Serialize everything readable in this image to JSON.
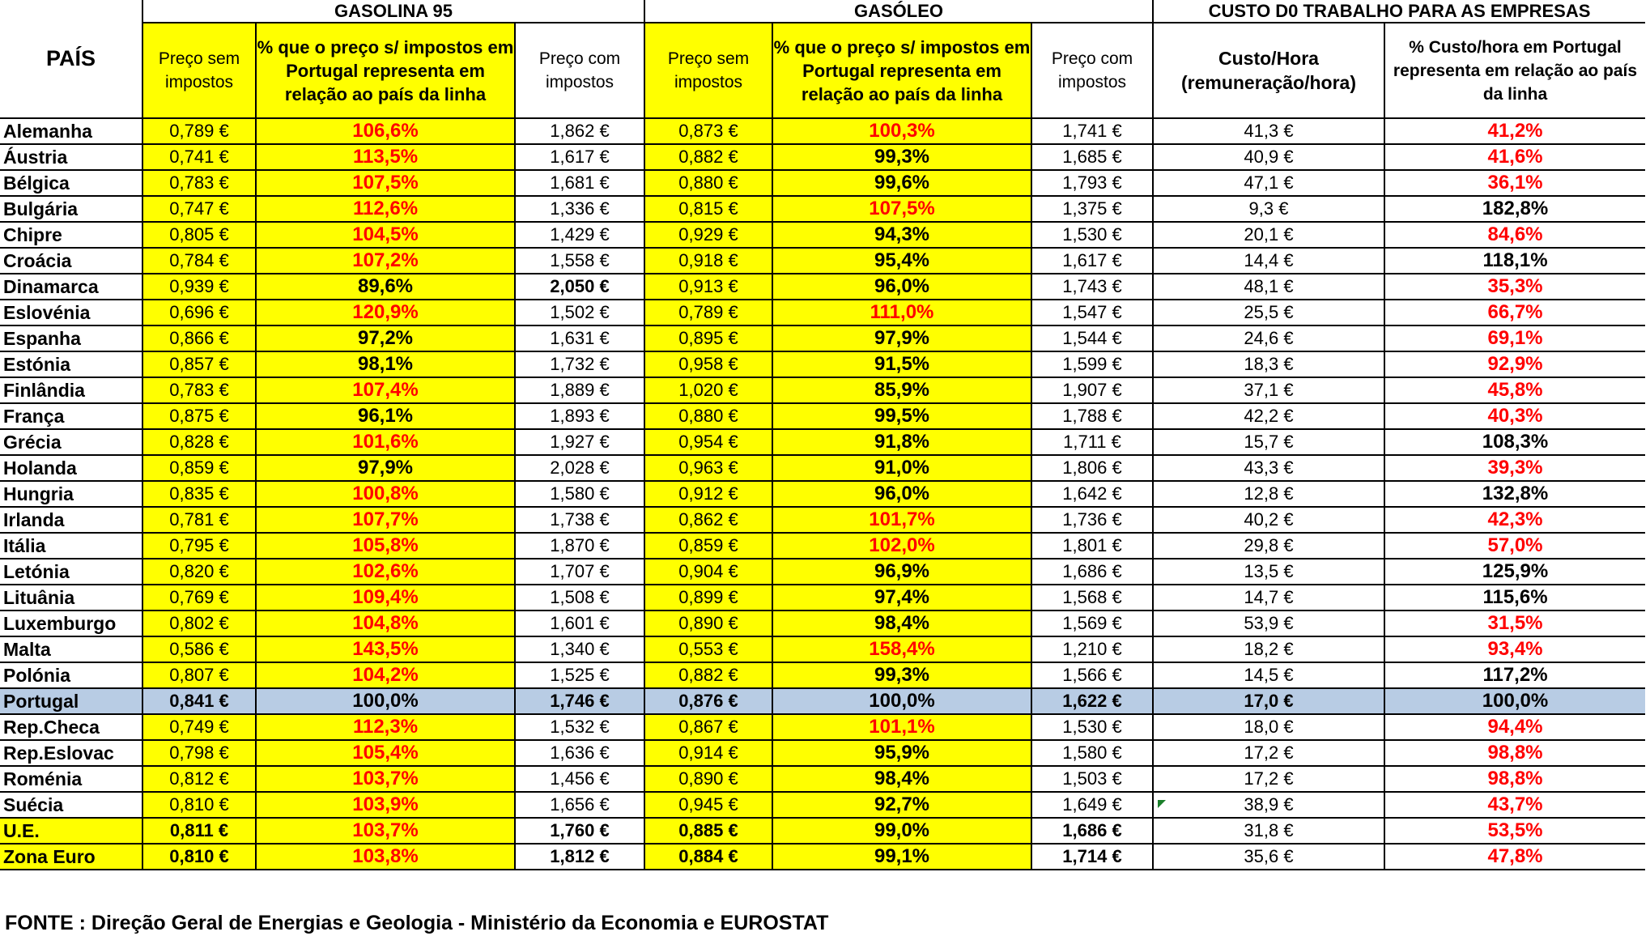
{
  "headers": {
    "pais": "PAÍS",
    "gasolina": "GASOLINA 95",
    "gasoleo": "GASÓLEO",
    "trabalho": "CUSTO D0 TRABALHO PARA AS EMPRESAS",
    "preco_sem": "Preço sem impostos",
    "pct_preco": "% que o preço  s/ impostos em Portugal representa em relação ao país da linha",
    "preco_com": "Preço com impostos",
    "custo_hora": "Custo/Hora (remuneração/hora)",
    "pct_custo": "% Custo/hora em Portugal representa em relação ao país da linha"
  },
  "rows": [
    {
      "pais": "Alemanha",
      "g_sem": "0,789 €",
      "g_pct": "106,6%",
      "g_pct_red": true,
      "g_com": "1,862 €",
      "d_sem": "0,873 €",
      "d_pct": "100,3%",
      "d_pct_red": true,
      "d_com": "1,741 €",
      "custo": "41,3 €",
      "c_pct": "41,2%",
      "c_pct_red": true
    },
    {
      "pais": "Áustria",
      "g_sem": "0,741 €",
      "g_pct": "113,5%",
      "g_pct_red": true,
      "g_com": "1,617 €",
      "d_sem": "0,882 €",
      "d_pct": "99,3%",
      "d_pct_red": false,
      "d_com": "1,685 €",
      "custo": "40,9 €",
      "c_pct": "41,6%",
      "c_pct_red": true
    },
    {
      "pais": "Bélgica",
      "g_sem": "0,783 €",
      "g_pct": "107,5%",
      "g_pct_red": true,
      "g_com": "1,681 €",
      "d_sem": "0,880 €",
      "d_pct": "99,6%",
      "d_pct_red": false,
      "d_com": "1,793 €",
      "custo": "47,1 €",
      "c_pct": "36,1%",
      "c_pct_red": true
    },
    {
      "pais": "Bulgária",
      "g_sem": "0,747 €",
      "g_pct": "112,6%",
      "g_pct_red": true,
      "g_com": "1,336 €",
      "d_sem": "0,815 €",
      "d_pct": "107,5%",
      "d_pct_red": true,
      "d_com": "1,375 €",
      "custo": "9,3 €",
      "c_pct": "182,8%",
      "c_pct_red": false
    },
    {
      "pais": "Chipre",
      "g_sem": "0,805 €",
      "g_pct": "104,5%",
      "g_pct_red": true,
      "g_com": "1,429 €",
      "d_sem": "0,929 €",
      "d_pct": "94,3%",
      "d_pct_red": false,
      "d_com": "1,530 €",
      "custo": "20,1 €",
      "c_pct": "84,6%",
      "c_pct_red": true
    },
    {
      "pais": "Croácia",
      "g_sem": "0,784 €",
      "g_pct": "107,2%",
      "g_pct_red": true,
      "g_com": "1,558 €",
      "d_sem": "0,918 €",
      "d_pct": "95,4%",
      "d_pct_red": false,
      "d_com": "1,617 €",
      "custo": "14,4 €",
      "c_pct": "118,1%",
      "c_pct_red": false
    },
    {
      "pais": "Dinamarca",
      "g_sem": "0,939 €",
      "g_pct": "89,6%",
      "g_pct_red": false,
      "g_com": "2,050 €",
      "g_com_bold": true,
      "d_sem": "0,913 €",
      "d_pct": "96,0%",
      "d_pct_red": false,
      "d_com": "1,743 €",
      "custo": "48,1 €",
      "c_pct": "35,3%",
      "c_pct_red": true
    },
    {
      "pais": "Eslovénia",
      "g_sem": "0,696 €",
      "g_pct": "120,9%",
      "g_pct_red": true,
      "g_com": "1,502 €",
      "d_sem": "0,789 €",
      "d_pct": "111,0%",
      "d_pct_red": true,
      "d_com": "1,547 €",
      "custo": "25,5 €",
      "c_pct": "66,7%",
      "c_pct_red": true
    },
    {
      "pais": "Espanha",
      "g_sem": "0,866 €",
      "g_pct": "97,2%",
      "g_pct_red": false,
      "g_com": "1,631 €",
      "d_sem": "0,895 €",
      "d_pct": "97,9%",
      "d_pct_red": false,
      "d_com": "1,544 €",
      "custo": "24,6 €",
      "c_pct": "69,1%",
      "c_pct_red": true
    },
    {
      "pais": "Estónia",
      "g_sem": "0,857 €",
      "g_pct": "98,1%",
      "g_pct_red": false,
      "g_com": "1,732 €",
      "d_sem": "0,958 €",
      "d_pct": "91,5%",
      "d_pct_red": false,
      "d_com": "1,599 €",
      "custo": "18,3 €",
      "c_pct": "92,9%",
      "c_pct_red": true
    },
    {
      "pais": "Finlândia",
      "g_sem": "0,783 €",
      "g_pct": "107,4%",
      "g_pct_red": true,
      "g_com": "1,889 €",
      "d_sem": "1,020 €",
      "d_pct": "85,9%",
      "d_pct_red": false,
      "d_com": "1,907 €",
      "custo": "37,1 €",
      "c_pct": "45,8%",
      "c_pct_red": true
    },
    {
      "pais": "França",
      "g_sem": "0,875 €",
      "g_pct": "96,1%",
      "g_pct_red": false,
      "g_com": "1,893 €",
      "d_sem": "0,880 €",
      "d_pct": "99,5%",
      "d_pct_red": false,
      "d_com": "1,788 €",
      "custo": "42,2 €",
      "c_pct": "40,3%",
      "c_pct_red": true
    },
    {
      "pais": "Grécia",
      "g_sem": "0,828 €",
      "g_pct": "101,6%",
      "g_pct_red": true,
      "g_com": "1,927 €",
      "d_sem": "0,954 €",
      "d_pct": "91,8%",
      "d_pct_red": false,
      "d_com": "1,711 €",
      "custo": "15,7 €",
      "c_pct": "108,3%",
      "c_pct_red": false
    },
    {
      "pais": "Holanda",
      "g_sem": "0,859 €",
      "g_pct": "97,9%",
      "g_pct_red": false,
      "g_com": "2,028 €",
      "d_sem": "0,963 €",
      "d_pct": "91,0%",
      "d_pct_red": false,
      "d_com": "1,806 €",
      "custo": "43,3 €",
      "c_pct": "39,3%",
      "c_pct_red": true
    },
    {
      "pais": "Hungria",
      "g_sem": "0,835 €",
      "g_pct": "100,8%",
      "g_pct_red": true,
      "g_com": "1,580 €",
      "d_sem": "0,912 €",
      "d_pct": "96,0%",
      "d_pct_red": false,
      "d_com": "1,642 €",
      "custo": "12,8 €",
      "c_pct": "132,8%",
      "c_pct_red": false
    },
    {
      "pais": "Irlanda",
      "g_sem": "0,781 €",
      "g_pct": "107,7%",
      "g_pct_red": true,
      "g_com": "1,738 €",
      "d_sem": "0,862 €",
      "d_pct": "101,7%",
      "d_pct_red": true,
      "d_com": "1,736 €",
      "custo": "40,2 €",
      "c_pct": "42,3%",
      "c_pct_red": true
    },
    {
      "pais": "Itália",
      "g_sem": "0,795 €",
      "g_pct": "105,8%",
      "g_pct_red": true,
      "g_com": "1,870 €",
      "d_sem": "0,859 €",
      "d_pct": "102,0%",
      "d_pct_red": true,
      "d_com": "1,801 €",
      "custo": "29,8 €",
      "c_pct": "57,0%",
      "c_pct_red": true
    },
    {
      "pais": "Letónia",
      "g_sem": "0,820 €",
      "g_pct": "102,6%",
      "g_pct_red": true,
      "g_com": "1,707 €",
      "d_sem": "0,904 €",
      "d_pct": "96,9%",
      "d_pct_red": false,
      "d_com": "1,686 €",
      "custo": "13,5 €",
      "c_pct": "125,9%",
      "c_pct_red": false
    },
    {
      "pais": "Lituânia",
      "g_sem": "0,769 €",
      "g_pct": "109,4%",
      "g_pct_red": true,
      "g_com": "1,508 €",
      "d_sem": "0,899 €",
      "d_pct": "97,4%",
      "d_pct_red": false,
      "d_com": "1,568 €",
      "custo": "14,7 €",
      "c_pct": "115,6%",
      "c_pct_red": false
    },
    {
      "pais": "Luxemburgo",
      "g_sem": "0,802 €",
      "g_pct": "104,8%",
      "g_pct_red": true,
      "g_com": "1,601 €",
      "d_sem": "0,890 €",
      "d_pct": "98,4%",
      "d_pct_red": false,
      "d_com": "1,569 €",
      "custo": "53,9 €",
      "c_pct": "31,5%",
      "c_pct_red": true
    },
    {
      "pais": "Malta",
      "g_sem": "0,586 €",
      "g_pct": "143,5%",
      "g_pct_red": true,
      "g_com": "1,340 €",
      "d_sem": "0,553 €",
      "d_pct": "158,4%",
      "d_pct_red": true,
      "d_com": "1,210 €",
      "custo": "18,2 €",
      "c_pct": "93,4%",
      "c_pct_red": true
    },
    {
      "pais": "Polónia",
      "g_sem": "0,807 €",
      "g_pct": "104,2%",
      "g_pct_red": true,
      "g_com": "1,525 €",
      "d_sem": "0,882 €",
      "d_pct": "99,3%",
      "d_pct_red": false,
      "d_com": "1,566 €",
      "custo": "14,5 €",
      "c_pct": "117,2%",
      "c_pct_red": false
    },
    {
      "pais": "Portugal",
      "g_sem": "0,841 €",
      "g_pct": "100,0%",
      "g_pct_red": false,
      "g_com": "1,746 €",
      "d_sem": "0,876 €",
      "d_pct": "100,0%",
      "d_pct_red": false,
      "d_com": "1,622 €",
      "custo": "17,0 €",
      "c_pct": "100,0%",
      "c_pct_red": false,
      "highlight": true
    },
    {
      "pais": "Rep.Checa",
      "g_sem": "0,749 €",
      "g_pct": "112,3%",
      "g_pct_red": true,
      "g_com": "1,532 €",
      "d_sem": "0,867 €",
      "d_pct": "101,1%",
      "d_pct_red": true,
      "d_com": "1,530 €",
      "custo": "18,0 €",
      "c_pct": "94,4%",
      "c_pct_red": true
    },
    {
      "pais": "Rep.Eslovac",
      "g_sem": "0,798 €",
      "g_pct": "105,4%",
      "g_pct_red": true,
      "g_com": "1,636 €",
      "d_sem": "0,914 €",
      "d_pct": "95,9%",
      "d_pct_red": false,
      "d_com": "1,580 €",
      "custo": "17,2 €",
      "c_pct": "98,8%",
      "c_pct_red": true
    },
    {
      "pais": "Roménia",
      "g_sem": "0,812 €",
      "g_pct": "103,7%",
      "g_pct_red": true,
      "g_com": "1,456 €",
      "d_sem": "0,890 €",
      "d_pct": "98,4%",
      "d_pct_red": false,
      "d_com": "1,503 €",
      "custo": "17,2 €",
      "c_pct": "98,8%",
      "c_pct_red": true
    },
    {
      "pais": "Suécia",
      "g_sem": "0,810 €",
      "g_pct": "103,9%",
      "g_pct_red": true,
      "g_com": "1,656 €",
      "d_sem": "0,945 €",
      "d_pct": "92,7%",
      "d_pct_red": false,
      "d_com": "1,649 €",
      "custo": "38,9 €",
      "c_pct": "43,7%",
      "c_pct_red": true
    },
    {
      "pais": "U.E.",
      "g_sem": "0,811 €",
      "g_pct": "103,7%",
      "g_pct_red": true,
      "g_com": "1,760 €",
      "d_sem": "0,885 €",
      "d_pct": "99,0%",
      "d_pct_red": false,
      "d_com": "1,686 €",
      "custo": "31,8 €",
      "c_pct": "53,5%",
      "c_pct_red": true,
      "aggregate": true
    },
    {
      "pais": "Zona Euro",
      "g_sem": "0,810 €",
      "g_pct": "103,8%",
      "g_pct_red": true,
      "g_com": "1,812 €",
      "d_sem": "0,884 €",
      "d_pct": "99,1%",
      "d_pct_red": false,
      "d_com": "1,714 €",
      "custo": "35,6 €",
      "c_pct": "47,8%",
      "c_pct_red": true,
      "aggregate": true
    }
  ],
  "source": "FONTE : Direção Geral de Energias e Geologia - Ministério da Economia e EUROSTAT",
  "colors": {
    "yellow": "#ffff00",
    "red": "#ff0000",
    "portugal": "#b8cce4"
  }
}
